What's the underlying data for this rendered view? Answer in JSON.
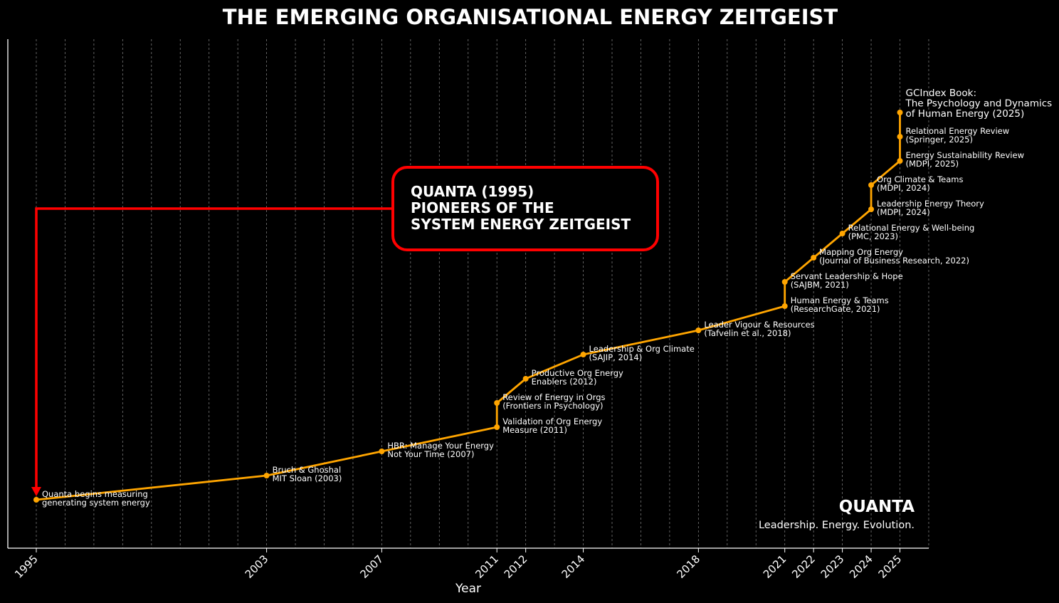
{
  "chart_data": {
    "type": "line",
    "title": "THE EMERGING ORGANISATIONAL ENERGY ZEITGEIST",
    "xlabel": "Year",
    "ylabel": "",
    "xlim": [
      1994,
      2026
    ],
    "x_ticks": [
      1995,
      2003,
      2007,
      2011,
      2012,
      2014,
      2018,
      2021,
      2022,
      2023,
      2024,
      2025
    ],
    "grid": "vertical dashed lines every year",
    "line_color": "#FFA500",
    "points": [
      {
        "x": 1995,
        "label": [
          "Quanta begins measuring",
          "generating system energy"
        ]
      },
      {
        "x": 2003,
        "label": [
          "Bruch & Ghoshal",
          "MIT Sloan (2003)"
        ]
      },
      {
        "x": 2007,
        "label": [
          "HBR: Manage Your Energy",
          "Not Your Time (2007)"
        ]
      },
      {
        "x": 2011,
        "label": [
          "Validation of Org Energy",
          "Measure (2011)"
        ]
      },
      {
        "x": 2011,
        "label": [
          "Review of Energy in Orgs",
          "(Frontiers in Psychology)"
        ]
      },
      {
        "x": 2012,
        "label": [
          "Productive Org Energy",
          "Enablers (2012)"
        ]
      },
      {
        "x": 2014,
        "label": [
          "Leadership & Org Climate",
          "(SAJIP, 2014)"
        ]
      },
      {
        "x": 2018,
        "label": [
          "Leader Vigour & Resources",
          "(Tafvelin et al., 2018)"
        ]
      },
      {
        "x": 2021,
        "label": [
          "Human Energy & Teams",
          "(ResearchGate, 2021)"
        ]
      },
      {
        "x": 2021,
        "label": [
          "Servant Leadership & Hope",
          "(SAJBM, 2021)"
        ]
      },
      {
        "x": 2022,
        "label": [
          "Mapping Org Energy",
          "(Journal of Business Research, 2022)"
        ]
      },
      {
        "x": 2023,
        "label": [
          "Relational Energy & Well-being",
          "(PMC, 2023)"
        ]
      },
      {
        "x": 2024,
        "label": [
          "Leadership Energy Theory",
          "(MDPI, 2024)"
        ]
      },
      {
        "x": 2024,
        "label": [
          "Org Climate & Teams",
          "(MDPI, 2024)"
        ]
      },
      {
        "x": 2025,
        "label": [
          "Energy Sustainability Review",
          "(MDPI, 2025)"
        ]
      },
      {
        "x": 2025,
        "label": [
          "Relational Energy Review",
          "(Springer, 2025)"
        ]
      },
      {
        "x": 2025,
        "label": [
          "GCIndex Book:",
          "The Psychology and Dynamics",
          "of Human Energy (2025)"
        ]
      }
    ],
    "callout": {
      "lines": [
        "QUANTA (1995)",
        "PIONEERS OF THE",
        "SYSTEM ENERGY ZEITGEIST"
      ],
      "border_color": "#FF0000",
      "points_to_x": 1995
    },
    "brand": {
      "name": "QUANTA",
      "tagline": "Leadership. Energy. Evolution."
    }
  }
}
